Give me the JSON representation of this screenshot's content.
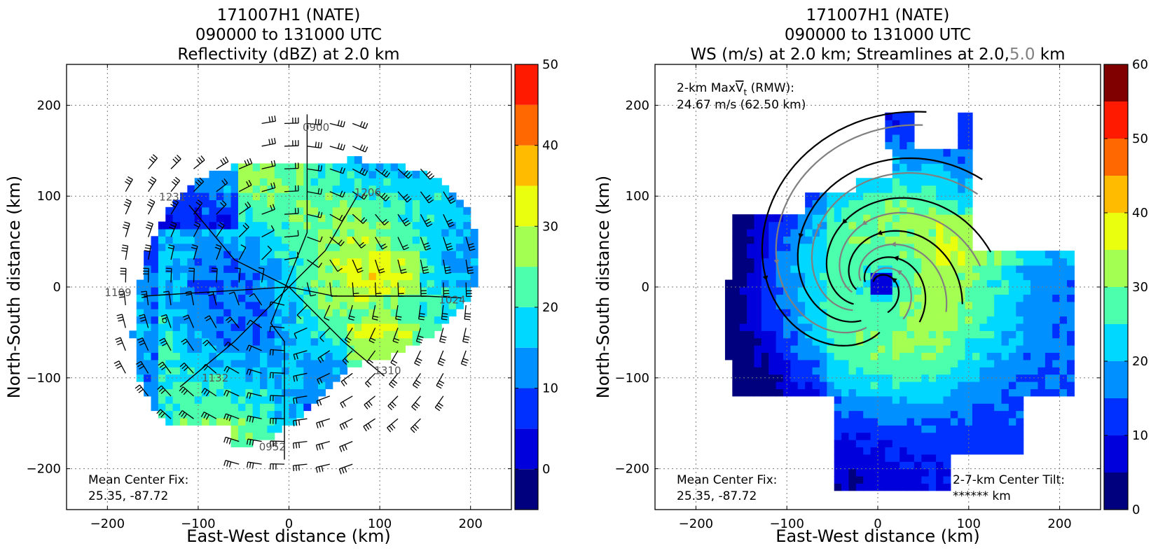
{
  "chart_data": [
    {
      "type": "heatmap",
      "title_lines": [
        "171007H1 (NATE)",
        "090000 to 131000 UTC",
        "Reflectivity (dBZ) at 2.0 km"
      ],
      "xlabel": "East-West distance (km)",
      "ylabel": "North-South distance (km)",
      "xlim": [
        -245,
        245
      ],
      "ylim": [
        -245,
        245
      ],
      "xticks": [
        -200,
        -100,
        0,
        100,
        200
      ],
      "yticks": [
        -200,
        -100,
        0,
        100,
        200
      ],
      "grid": true,
      "colorbar": {
        "min": -5,
        "max": 50,
        "ticks": [
          0,
          10,
          20,
          30,
          40,
          50
        ],
        "levels": [
          -5,
          0,
          5,
          10,
          15,
          20,
          25,
          30,
          35,
          40,
          45,
          50
        ],
        "colors": [
          "#00007f",
          "#0000dc",
          "#0030ff",
          "#0090ff",
          "#00d8ff",
          "#4bffac",
          "#a4ff53",
          "#eaff0d",
          "#ffbb00",
          "#ff6800",
          "#ff1a00",
          "#800000"
        ]
      },
      "flight_track_labels": [
        {
          "text": "0900",
          "x": 15,
          "y": 172
        },
        {
          "text": "1206",
          "x": 72,
          "y": 100
        },
        {
          "text": "1024",
          "x": 165,
          "y": -18
        },
        {
          "text": "1310",
          "x": 94,
          "y": -96
        },
        {
          "text": "0952",
          "x": -33,
          "y": -180
        },
        {
          "text": "1132",
          "x": -96,
          "y": -104
        },
        {
          "text": "1109",
          "x": -203,
          "y": -10
        },
        {
          "text": "1231",
          "x": -143,
          "y": 95
        }
      ],
      "annotation": {
        "lines": [
          "Mean Center Fix:",
          "25.35, -87.72"
        ]
      }
    },
    {
      "type": "heatmap",
      "title_lines": [
        "171007H1 (NATE)",
        "090000 to 131000 UTC"
      ],
      "title_line3_parts": [
        {
          "text": "WS (m/s) at 2.0 km; Streamlines at 2.0,",
          "color": "#000000"
        },
        {
          "text": "5.0",
          "color": "#808080"
        },
        {
          "text": " km",
          "color": "#000000"
        }
      ],
      "xlabel": "East-West distance (km)",
      "ylabel": "North-South distance (km)",
      "xlim": [
        -245,
        245
      ],
      "ylim": [
        -245,
        245
      ],
      "xticks": [
        -200,
        -100,
        0,
        100,
        200
      ],
      "yticks": [
        -200,
        -100,
        0,
        100,
        200
      ],
      "grid": true,
      "colorbar": {
        "min": 0,
        "max": 60,
        "ticks": [
          0,
          10,
          20,
          30,
          40,
          50,
          60
        ],
        "levels": [
          0,
          5,
          10,
          15,
          20,
          25,
          30,
          35,
          40,
          45,
          50,
          55,
          60
        ],
        "colors": [
          "#00007f",
          "#0000dc",
          "#0030ff",
          "#0090ff",
          "#00d8ff",
          "#4bffac",
          "#a4ff53",
          "#eaff0d",
          "#ffbb00",
          "#ff6800",
          "#ff1a00",
          "#800000"
        ]
      },
      "rmw_note": {
        "line1_prefix": "2-km Max",
        "vt_symbol": "V",
        "vt_sub": "t",
        "line1_suffix": " (RMW):",
        "line2": "24.67 m/s (62.50 km)"
      },
      "annotation": {
        "lines": [
          "Mean Center Fix:",
          "25.35, -87.72"
        ]
      },
      "tilt_note": {
        "lines": [
          "2-7-km Center Tilt:",
          "****** km"
        ],
        "color": "#ff0000"
      },
      "streamline_colors": {
        "level_2km": "#000000",
        "level_5km": "#808080"
      }
    }
  ]
}
